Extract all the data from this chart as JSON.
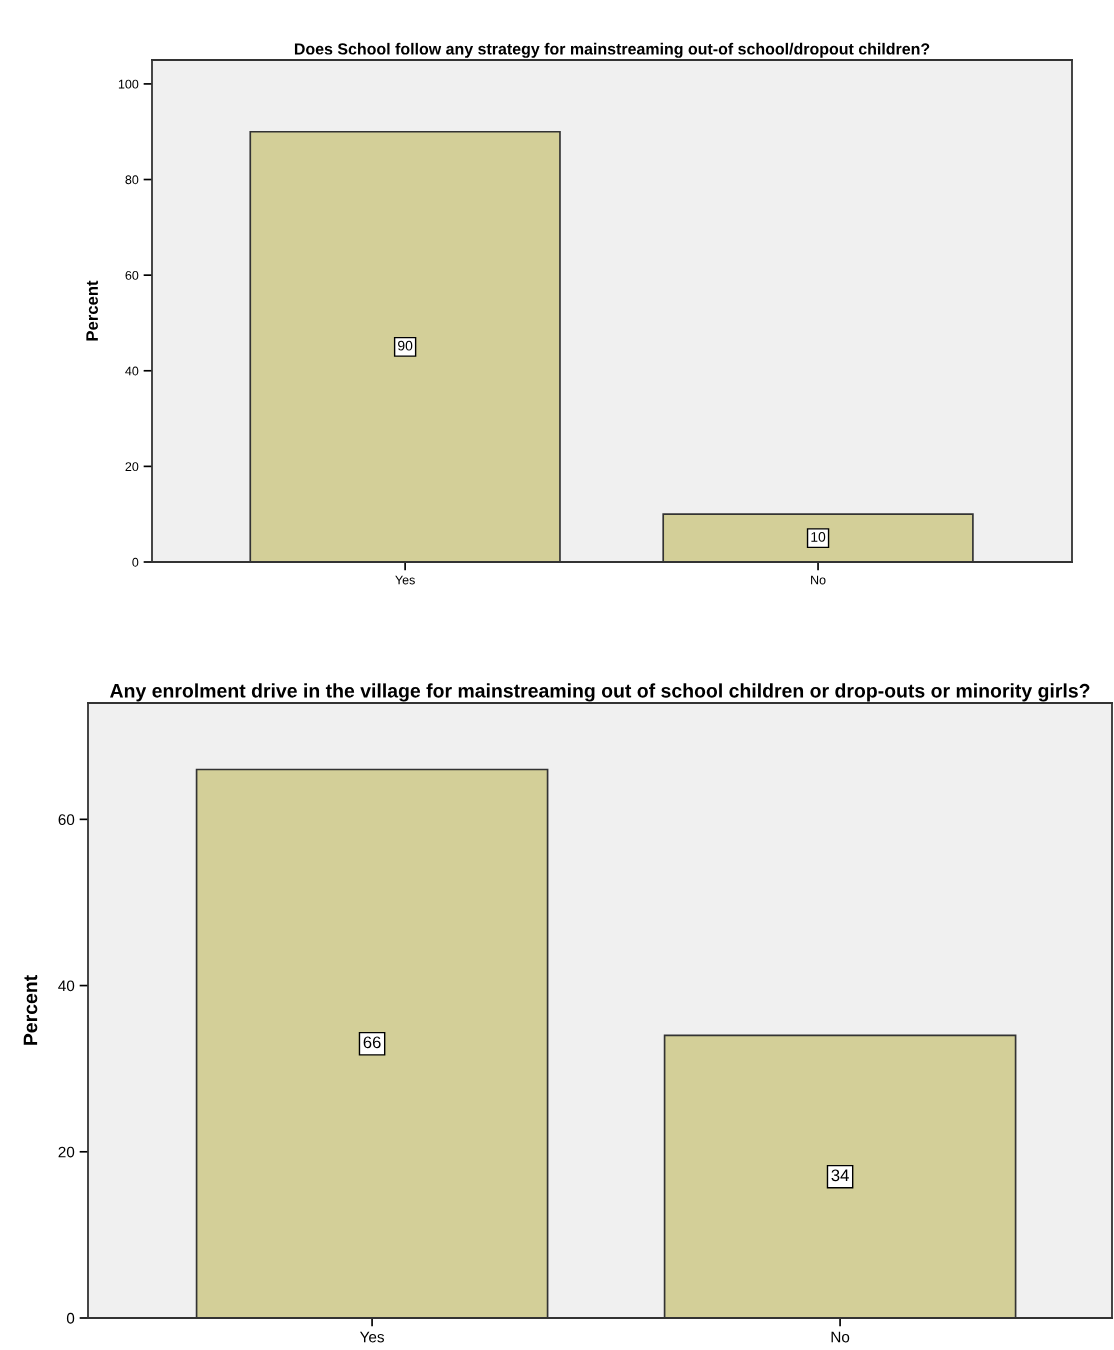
{
  "chart_data": [
    {
      "type": "bar",
      "title": "Does School follow any strategy for mainstreaming out-of school/dropout children?",
      "ylabel": "Percent",
      "categories": [
        "Yes",
        "No"
      ],
      "values": [
        90,
        10
      ],
      "color": "#d3cf98",
      "ylim": [
        0,
        105
      ],
      "yticks": [
        0,
        20,
        40,
        60,
        80,
        100
      ],
      "data_labels": true,
      "grid": false,
      "legend": false
    },
    {
      "type": "bar",
      "title": "Any enrolment drive in the village for mainstreaming out of school children or drop-outs or minority girls?",
      "ylabel": "Percent",
      "categories": [
        "Yes",
        "No"
      ],
      "values": [
        66,
        34
      ],
      "color": "#d3cf98",
      "ylim": [
        0,
        74
      ],
      "yticks": [
        0,
        20,
        40,
        60
      ],
      "data_labels": true,
      "grid": false,
      "legend": false
    }
  ]
}
